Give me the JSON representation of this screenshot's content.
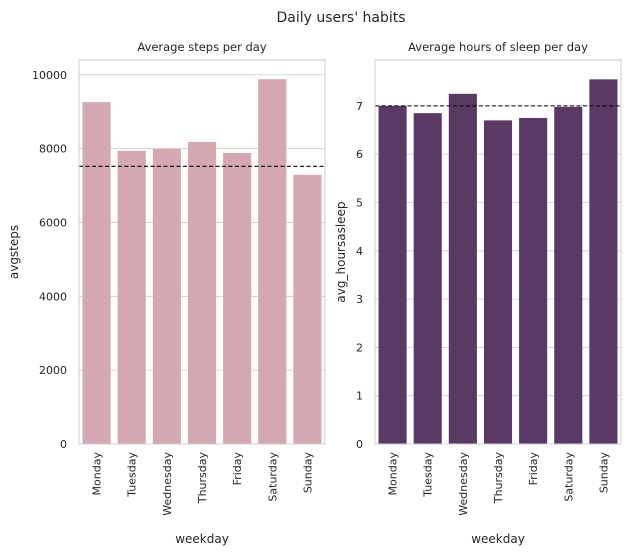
{
  "figure": {
    "suptitle": "Daily users' habits"
  },
  "chart_data": [
    {
      "type": "bar",
      "title": "Average steps per day",
      "xlabel": "weekday",
      "ylabel": "avgsteps",
      "categories": [
        "Monday",
        "Tuesday",
        "Wednesday",
        "Thursday",
        "Friday",
        "Saturday",
        "Sunday"
      ],
      "values": [
        9260,
        7940,
        8000,
        8180,
        7880,
        9880,
        7290
      ],
      "ylim": [
        0,
        10400
      ],
      "yticks": [
        0,
        2000,
        4000,
        6000,
        8000,
        10000
      ],
      "ytick_labels": [
        "0",
        "2000",
        "4000",
        "6000",
        "8000",
        "10000"
      ],
      "reference_line": 7520,
      "bar_color": "#d5a7b1",
      "grid": "horizontal"
    },
    {
      "type": "bar",
      "title": "Average hours of sleep per day",
      "xlabel": "weekday",
      "ylabel": "avg_hoursasleep",
      "categories": [
        "Monday",
        "Tuesday",
        "Wednesday",
        "Thursday",
        "Friday",
        "Saturday",
        "Sunday"
      ],
      "values": [
        7.0,
        6.85,
        7.25,
        6.7,
        6.75,
        6.98,
        7.55
      ],
      "ylim": [
        0,
        7.95
      ],
      "yticks": [
        0,
        1,
        2,
        3,
        4,
        5,
        6,
        7
      ],
      "ytick_labels": [
        "0",
        "1",
        "2",
        "3",
        "4",
        "5",
        "6",
        "7"
      ],
      "reference_line": 7.0,
      "bar_color": "#5a3a64",
      "grid": "horizontal"
    }
  ]
}
